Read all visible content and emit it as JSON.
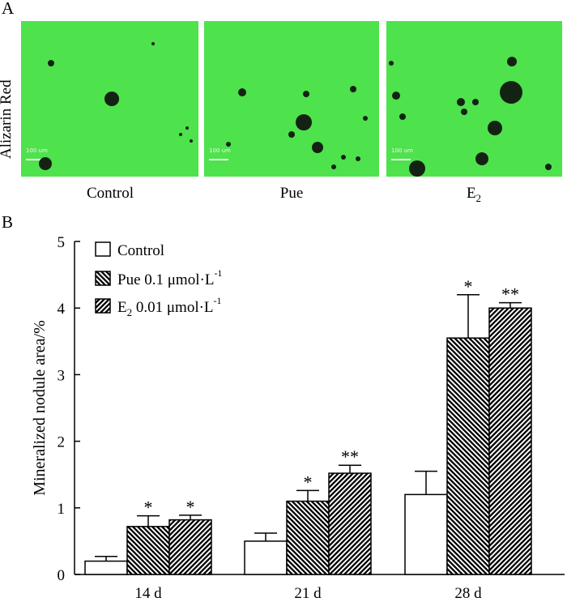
{
  "panel_a": {
    "letter": "A",
    "stain_label": "Alizarin Red",
    "scale_label": "100 um",
    "images": [
      {
        "condition": "Control"
      },
      {
        "condition": "Pue"
      },
      {
        "condition": "E",
        "condition_sub": "2"
      }
    ]
  },
  "panel_b": {
    "letter": "B"
  },
  "colors": {
    "micrograph_bg": "#4ee24c",
    "nodule": "#142214",
    "bar_edge": "#000000"
  },
  "chart_data": {
    "type": "bar",
    "ylabel": "Mineralized nodule area/%",
    "xlabel": "",
    "ylim": [
      0,
      5
    ],
    "yticks": [
      0,
      1,
      2,
      3,
      4,
      5
    ],
    "categories": [
      "14 d",
      "21 d",
      "28 d"
    ],
    "legend_position": "top-left",
    "series": [
      {
        "name": "Control",
        "legend_text": "Control",
        "pattern": "white",
        "values": [
          0.2,
          0.5,
          1.2
        ],
        "errors": [
          0.07,
          0.12,
          0.35
        ],
        "significance": [
          "",
          "",
          ""
        ]
      },
      {
        "name": "Pue 0.1 μmol·L-1",
        "legend_text": "Pue 0.1 μmol·L",
        "legend_sup": "-1",
        "pattern": "hatch-back",
        "values": [
          0.72,
          1.1,
          3.55
        ],
        "errors": [
          0.16,
          0.16,
          0.65
        ],
        "significance": [
          "*",
          "*",
          "*"
        ]
      },
      {
        "name": "E2 0.01 μmol·L-1",
        "legend_text": "E",
        "legend_sub": "2",
        "legend_text2": " 0.01 μmol·L",
        "legend_sup": "-1",
        "pattern": "hatch-forward",
        "values": [
          0.82,
          1.52,
          4.0
        ],
        "errors": [
          0.07,
          0.12,
          0.08
        ],
        "significance": [
          "*",
          "**",
          "**"
        ]
      }
    ]
  }
}
